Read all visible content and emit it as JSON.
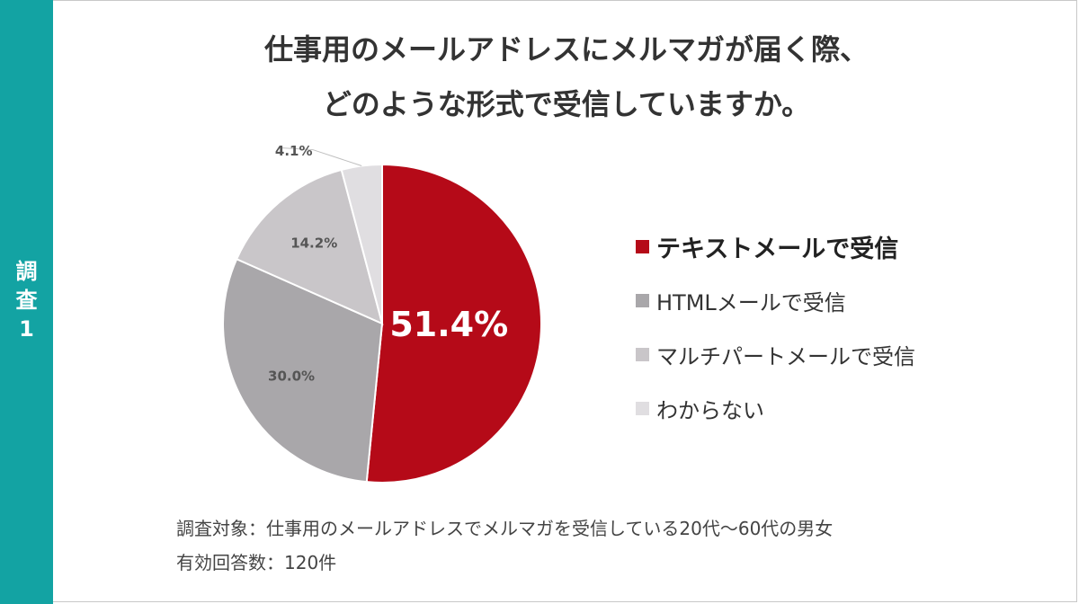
{
  "side_tab": {
    "label": "調\n査\n1",
    "color": "#13a3a3"
  },
  "title": {
    "line1": "仕事用のメールアドレスにメルマガが届く際、",
    "line2": "どのような形式で受信していますか。"
  },
  "chart_data": {
    "type": "pie",
    "start_angle_deg": 0,
    "direction": "clockwise",
    "slices": [
      {
        "label": "テキストメールで受信",
        "value": 51.4,
        "value_label": "51.4%",
        "color": "#b50a18"
      },
      {
        "label": "HTMLメールで受信",
        "value": 30.0,
        "value_label": "30.0%",
        "color": "#a9a7aa"
      },
      {
        "label": "マルチパートメールで受信",
        "value": 14.2,
        "value_label": "14.2%",
        "color": "#c9c6c9"
      },
      {
        "label": "わからない",
        "value": 4.1,
        "value_label": "4.1%",
        "color": "#e0dee1"
      }
    ],
    "highlight_index": 0,
    "legend_position": "right"
  },
  "notes": {
    "target": "調査対象：仕事用のメールアドレスでメルマガを受信している20代～60代の男女",
    "responses": "有効回答数：120件"
  }
}
